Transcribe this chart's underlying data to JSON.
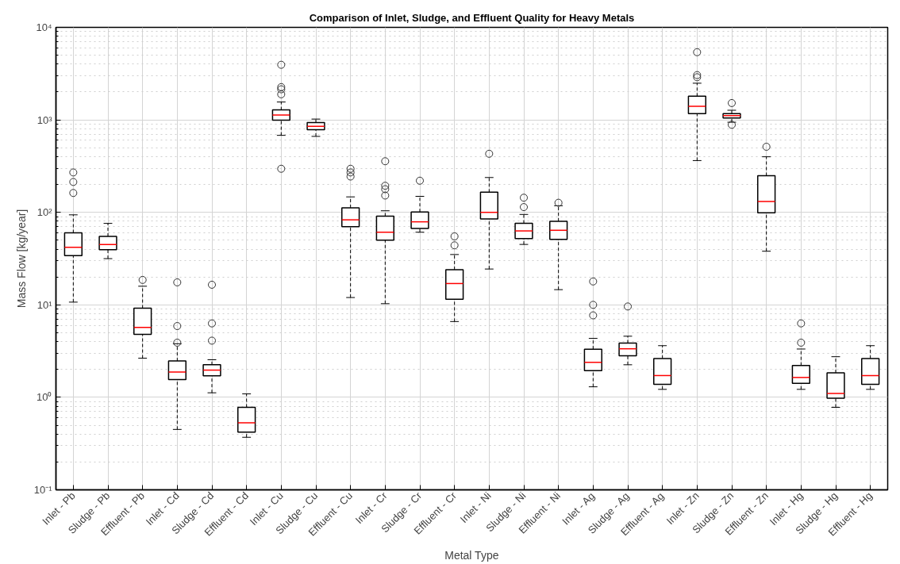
{
  "chart_data": {
    "type": "box",
    "title": "Comparison of Inlet, Sludge, and Effluent Quality for Heavy Metals",
    "xlabel": "Metal Type",
    "ylabel": "Mass Flow [kg/year]",
    "categories": [
      "Inlet - Pb",
      "Sludge - Pb",
      "Effluent - Pb",
      "Inlet - Cd",
      "Sludge - Cd",
      "Effluent - Cd",
      "Inlet - Cu",
      "Sludge - Cu",
      "Effluent - Cu",
      "Inlet - Cr",
      "Sludge - Cr",
      "Effluent - Cr",
      "Inlet - Ni",
      "Sludge - Ni",
      "Effluent - Ni",
      "Inlet - Ag",
      "Sludge - Ag",
      "Effluent - Ag",
      "Inlet - Zn",
      "Sludge - Zn",
      "Effluent - Zn",
      "Inlet - Hg",
      "Sludge - Hg",
      "Effluent - Hg"
    ],
    "log": "y",
    "ylim": [
      0.1,
      10000
    ],
    "yticks": [
      {
        "value": 0.1,
        "label": "10⁻¹"
      },
      {
        "value": 1,
        "label": "10⁰"
      },
      {
        "value": 10,
        "label": "10¹"
      },
      {
        "value": 100,
        "label": "10²"
      },
      {
        "value": 1000,
        "label": "10³"
      },
      {
        "value": 10000,
        "label": "10⁴"
      }
    ],
    "grid": true,
    "boxes": [
      {
        "low": 10.7,
        "q1": 34,
        "median": 42,
        "q3": 60,
        "high": 94,
        "outliers": [
          270,
          213,
          162
        ]
      },
      {
        "low": 31.6,
        "q1": 39.4,
        "median": 45,
        "q3": 55,
        "high": 76
      },
      {
        "low": 2.65,
        "q1": 4.8,
        "median": 5.7,
        "q3": 9.2,
        "high": 15.9,
        "outliers": [
          18.6
        ]
      },
      {
        "low": 0.45,
        "q1": 1.56,
        "median": 1.88,
        "q3": 2.47,
        "high": 3.8,
        "outliers": [
          17.5,
          5.9,
          3.9
        ]
      },
      {
        "low": 1.12,
        "q1": 1.71,
        "median": 1.97,
        "q3": 2.25,
        "high": 2.55,
        "outliers": [
          16.5,
          6.3,
          4.1
        ]
      },
      {
        "low": 0.37,
        "q1": 0.42,
        "median": 0.53,
        "q3": 0.78,
        "high": 1.09
      },
      {
        "low": 680,
        "q1": 990,
        "median": 1130,
        "q3": 1280,
        "high": 1560,
        "outliers": [
          3940,
          2260,
          2140,
          1890,
          296
        ]
      },
      {
        "low": 663,
        "q1": 781,
        "median": 851,
        "q3": 935,
        "high": 1020
      },
      {
        "low": 12,
        "q1": 70,
        "median": 83,
        "q3": 112,
        "high": 147,
        "outliers": [
          296,
          270,
          244
        ]
      },
      {
        "low": 10.3,
        "q1": 50,
        "median": 61,
        "q3": 91,
        "high": 104,
        "outliers": [
          357,
          194,
          178,
          152
        ]
      },
      {
        "low": 61,
        "q1": 67,
        "median": 79,
        "q3": 101,
        "high": 149,
        "outliers": [
          220
        ]
      },
      {
        "low": 6.6,
        "q1": 11.5,
        "median": 17,
        "q3": 24,
        "high": 35,
        "outliers": [
          55,
          44
        ]
      },
      {
        "low": 24.4,
        "q1": 85,
        "median": 100,
        "q3": 165,
        "high": 238,
        "outliers": [
          430
        ]
      },
      {
        "low": 45,
        "q1": 52,
        "median": 63,
        "q3": 76,
        "high": 95,
        "outliers": [
          144,
          114
        ]
      },
      {
        "low": 14.6,
        "q1": 51,
        "median": 64,
        "q3": 80,
        "high": 118,
        "outliers": [
          127
        ]
      },
      {
        "low": 1.3,
        "q1": 1.94,
        "median": 2.39,
        "q3": 3.32,
        "high": 4.34,
        "outliers": [
          17.9,
          10,
          7.7
        ]
      },
      {
        "low": 2.25,
        "q1": 2.82,
        "median": 3.35,
        "q3": 3.86,
        "high": 4.58,
        "outliers": [
          9.6
        ]
      },
      {
        "low": 1.22,
        "q1": 1.38,
        "median": 1.72,
        "q3": 2.63,
        "high": 3.62
      },
      {
        "low": 363,
        "q1": 1170,
        "median": 1400,
        "q3": 1800,
        "high": 2490,
        "outliers": [
          5390,
          3050,
          2890
        ]
      },
      {
        "low": 943,
        "q1": 1050,
        "median": 1110,
        "q3": 1170,
        "high": 1270,
        "outliers": [
          1520,
          885
        ]
      },
      {
        "low": 38,
        "q1": 99,
        "median": 131,
        "q3": 249,
        "high": 399,
        "outliers": [
          512
        ]
      },
      {
        "low": 1.22,
        "q1": 1.42,
        "median": 1.64,
        "q3": 2.21,
        "high": 3.33,
        "outliers": [
          6.3,
          3.9
        ]
      },
      {
        "low": 0.78,
        "q1": 0.98,
        "median": 1.1,
        "q3": 1.84,
        "high": 2.75
      },
      {
        "low": 1.22,
        "q1": 1.38,
        "median": 1.72,
        "q3": 2.63,
        "high": 3.62
      }
    ]
  }
}
